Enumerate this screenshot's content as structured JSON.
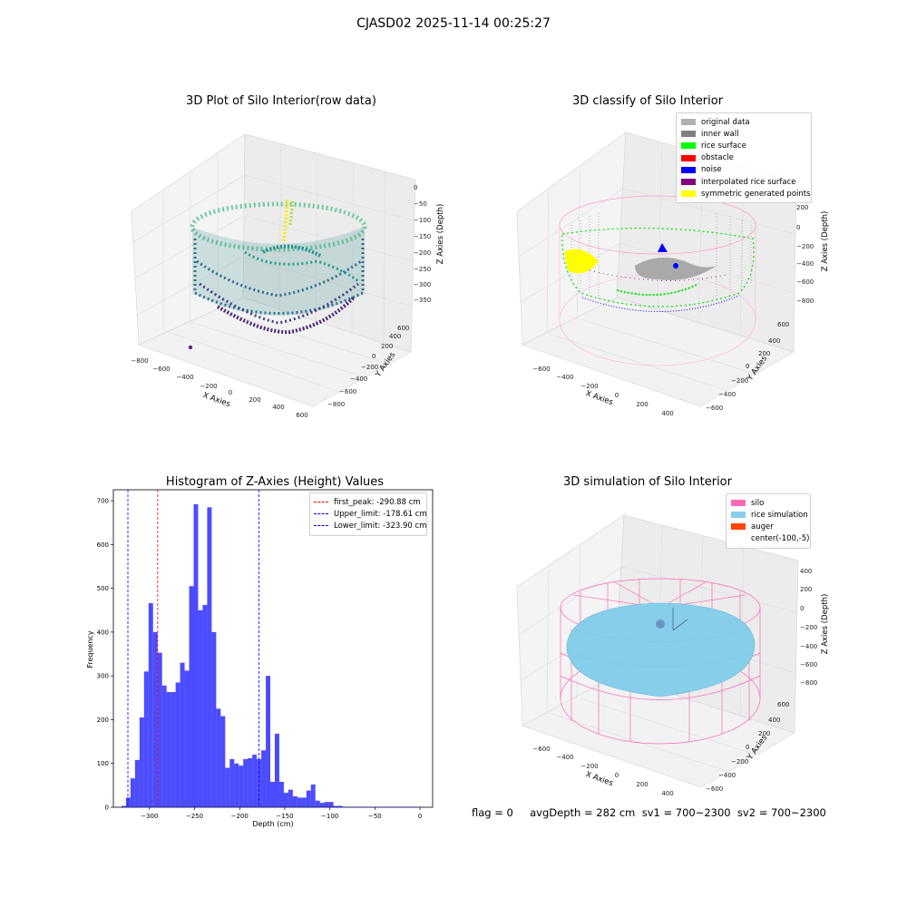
{
  "suptitle": "CJASD02 2025-11-14 00:25:27",
  "panels": {
    "raw": {
      "title": "3D Plot of Silo Interior(row data)",
      "xlabel": "X Axies",
      "ylabel": "Y Axies",
      "zlabel": "Z Axies (Depth)",
      "x_ticks": [
        "−800",
        "−600",
        "−400",
        "−200",
        "0",
        "200",
        "400",
        "600"
      ],
      "y_ticks": [
        "−800",
        "−600",
        "−400",
        "−200",
        "0",
        "200",
        "400",
        "600"
      ],
      "z_ticks": [
        "0",
        "−50",
        "−100",
        "−150",
        "−200",
        "−250",
        "−300",
        "−350"
      ]
    },
    "classify": {
      "title": "3D classify of Silo Interior",
      "xlabel": "X Axies",
      "ylabel": "Y Axies",
      "zlabel": "Z Axies (Depth)",
      "x_ticks": [
        "−600",
        "−400",
        "−200",
        "0",
        "200",
        "400"
      ],
      "y_ticks": [
        "−600",
        "−400",
        "−200",
        "0",
        "200",
        "400",
        "600"
      ],
      "z_ticks": [
        "200",
        "0",
        "−200",
        "−400",
        "−600",
        "−800"
      ],
      "z_top_partial": "00",
      "legend": [
        {
          "label": "original data",
          "color": "#b0b0b0"
        },
        {
          "label": "inner wall",
          "color": "#808080"
        },
        {
          "label": "rice surface",
          "color": "#00ff00"
        },
        {
          "label": "obstacle",
          "color": "#ff0000"
        },
        {
          "label": "noise",
          "color": "#0000ff"
        },
        {
          "label": "interpolated rice surface",
          "color": "#800080"
        },
        {
          "label": "symmetric generated points",
          "color": "#ffff00"
        }
      ]
    },
    "simulation": {
      "title": "3D simulation of Silo Interior",
      "xlabel": "X Axies",
      "ylabel": "Y Axies",
      "zlabel": "Z Axies (Depth)",
      "x_ticks": [
        "−600",
        "−400",
        "−200",
        "0",
        "200",
        "400"
      ],
      "y_ticks": [
        "−600",
        "−400",
        "−200",
        "0",
        "200",
        "400",
        "600"
      ],
      "z_ticks": [
        "400",
        "200",
        "0",
        "−200",
        "−400",
        "−600",
        "−800"
      ],
      "legend": [
        {
          "label": "silo",
          "color": "#ff69b4"
        },
        {
          "label": "rice simulation",
          "color": "#87ceeb"
        },
        {
          "label": "auger",
          "color": "#ff4500"
        },
        {
          "label": "center(-100,-5)",
          "color": ""
        }
      ]
    }
  },
  "status": {
    "text": "flag = 0     avgDepth = 282 cm  sv1 = 700~2300  sv2 = 700~2300"
  },
  "chart_data": [
    {
      "type": "bar",
      "title": "Histogram of Z-Axies (Height) Values",
      "xlabel": "Depth (cm)",
      "ylabel": "Frequency",
      "bar_color": "#0000ff",
      "xlim": [
        -340,
        14
      ],
      "ylim": [
        0,
        725
      ],
      "x_ticks": [
        -300,
        -250,
        -200,
        -150,
        -100,
        -50,
        0
      ],
      "x_tick_labels": [
        "−300",
        "−250",
        "−200",
        "−150",
        "−100",
        "−50",
        "0"
      ],
      "y_ticks": [
        0,
        100,
        200,
        300,
        400,
        500,
        600,
        700
      ],
      "bin_edges": [
        -331,
        -326,
        -321,
        -316,
        -311,
        -306,
        -301,
        -296,
        -291,
        -286,
        -281,
        -276,
        -271,
        -266,
        -261,
        -256,
        -251,
        -246,
        -241,
        -236,
        -231,
        -226,
        -221,
        -216,
        -211,
        -206,
        -201,
        -196,
        -191,
        -186,
        -181,
        -176,
        -171,
        -166,
        -161,
        -156,
        -151,
        -146,
        -141,
        -136,
        -131,
        -126,
        -121,
        -116,
        -111,
        -106,
        -101,
        -96,
        -91,
        -86,
        -81,
        -76,
        -71,
        -66,
        -61,
        -56,
        -51,
        -46,
        -41,
        -36,
        -31,
        -26,
        -21,
        -16,
        -11,
        -6,
        -1
      ],
      "values": [
        3,
        22,
        66,
        108,
        205,
        310,
        466,
        400,
        353,
        278,
        263,
        263,
        285,
        330,
        312,
        505,
        692,
        450,
        462,
        685,
        400,
        225,
        208,
        90,
        110,
        100,
        95,
        110,
        112,
        120,
        110,
        130,
        300,
        58,
        168,
        58,
        33,
        40,
        25,
        22,
        22,
        38,
        52,
        15,
        10,
        12,
        12,
        3,
        3,
        1,
        1,
        1,
        1,
        1,
        1,
        1,
        1,
        1,
        1,
        1,
        1,
        1,
        1,
        1,
        1,
        1
      ],
      "vlines": [
        {
          "label": "first_peak: -290.88 cm",
          "x": -290.88,
          "color": "#ff0000"
        },
        {
          "label": "Upper_limit: -178.61 cm",
          "x": -178.61,
          "color": "#0000ff"
        },
        {
          "label": "Lower_limit: -323.90 cm",
          "x": -323.9,
          "color": "#0000ff"
        }
      ],
      "legend_position": "top-right"
    }
  ]
}
